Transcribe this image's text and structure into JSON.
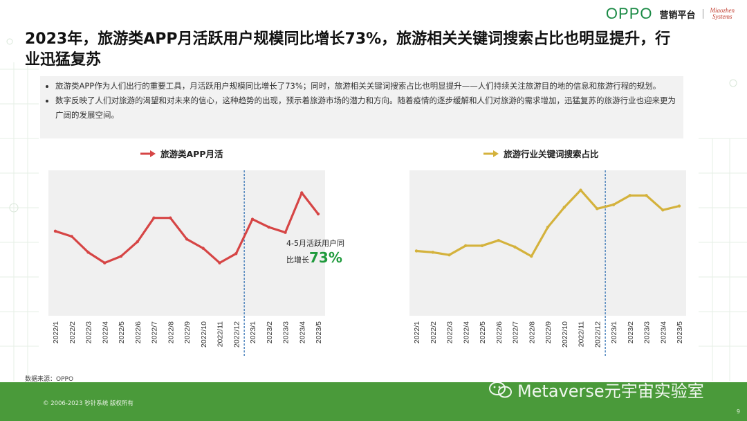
{
  "header": {
    "brand": "OPPO",
    "platform": "营销平台",
    "partner_line1": "Miaozhen",
    "partner_line2": "Systems"
  },
  "title": "2023年，旅游类APP月活跃用户规模同比增长73%，旅游相关关键词搜索占比也明显提升，行业迅猛复苏",
  "bullets": [
    "旅游类APP作为人们出行的重要工具，月活跃用户规模同比增长了73%；同时，旅游相关关键词搜索占比也明显提升——人们持续关注旅游目的地的信息和旅游行程的规划。",
    "数字反映了人们对旅游的渴望和对未来的信心，这种趋势的出现，预示着旅游市场的潜力和方向。随着疫情的逐步缓解和人们对旅游的需求增加，迅猛复苏的旅游行业也迎来更为广阔的发展空间。"
  ],
  "annotation": {
    "line1": "4-5月活跃用户同",
    "line2_prefix": "比增长",
    "value": "73%"
  },
  "source": "数据来源：OPPO",
  "copyright": "© 2006-2023 秒针系统 版权所有",
  "watermark": "Metaverse元宇宙实验室",
  "page_number": "9",
  "colors": {
    "series_red": "#d64545",
    "series_gold": "#d4b23c",
    "accent_green": "#1f9a3c",
    "footer_green": "#4a9a3a",
    "divider_blue": "#2a6bb0"
  },
  "chart_data": [
    {
      "type": "line",
      "title": "",
      "categories": [
        "2022/1",
        "2022/2",
        "2022/3",
        "2022/4",
        "2022/5",
        "2022/6",
        "2022/7",
        "2022/8",
        "2022/9",
        "2022/10",
        "2022/11",
        "2022/12",
        "2023/1",
        "2023/2",
        "2023/3",
        "2023/4",
        "2023/5"
      ],
      "series": [
        {
          "name": "旅游类APP月活",
          "values": [
            64,
            60,
            48,
            40,
            45,
            56,
            74,
            74,
            58,
            51,
            40,
            47,
            73,
            67,
            63,
            93,
            77
          ]
        }
      ],
      "ylim": [
        0,
        110
      ],
      "y_axis_labels_shown": false,
      "grid": false,
      "divider_after": "2022/12",
      "legend_position": "top-center"
    },
    {
      "type": "line",
      "title": "",
      "categories": [
        "2022/1",
        "2022/2",
        "2022/3",
        "2022/4",
        "2022/5",
        "2022/6",
        "2022/7",
        "2022/8",
        "2022/9",
        "2022/10",
        "2022/11",
        "2022/12",
        "2023/1",
        "2023/2",
        "2023/3",
        "2023/4",
        "2023/5"
      ],
      "series": [
        {
          "name": "旅游行业关键词搜索占比",
          "values": [
            49,
            48,
            46,
            53,
            53,
            57,
            52,
            45,
            67,
            82,
            95,
            81,
            84,
            91,
            91,
            80,
            83
          ]
        }
      ],
      "ylim": [
        0,
        110
      ],
      "y_axis_labels_shown": false,
      "grid": false,
      "divider_after": "2022/12",
      "legend_position": "top-center"
    }
  ]
}
